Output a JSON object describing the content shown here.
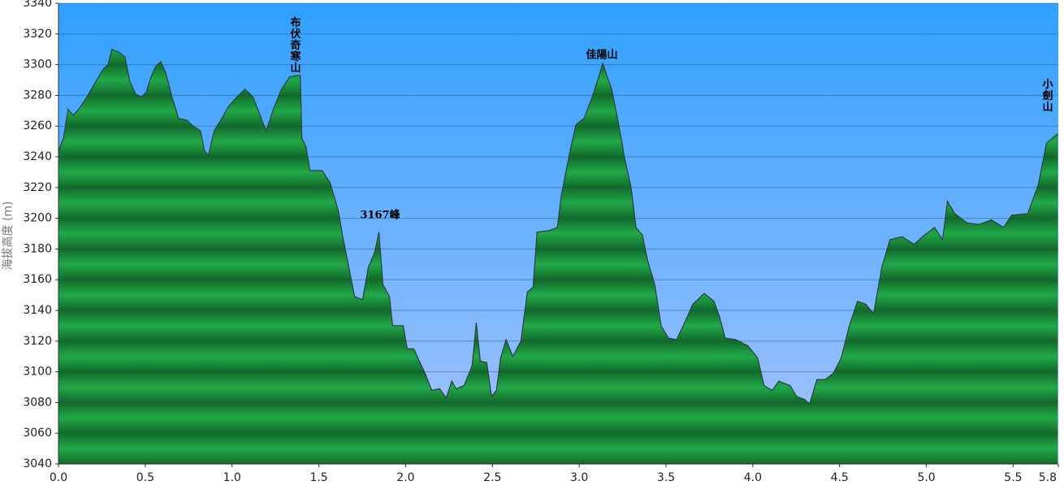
{
  "chart_data": {
    "type": "area",
    "y_label": "海拔高度 (m)",
    "color": "#22a84a",
    "line_color": "#2e3e3a",
    "grid": true,
    "xlim": [
      0,
      5.76
    ],
    "ylim": [
      3040,
      3340
    ],
    "xticks": [
      {
        "value": 0,
        "label": "0.0"
      },
      0.5,
      {
        "value": 1,
        "label": "1.0"
      },
      1.5,
      {
        "value": 2,
        "label": "2.0"
      },
      2.5,
      {
        "value": 3,
        "label": "3.0"
      },
      3.5,
      {
        "value": 4,
        "label": "4.0"
      },
      4.5,
      {
        "value": 5,
        "label": "5.0"
      },
      5.5,
      {
        "value": 5.76,
        "label": "5.8"
      }
    ],
    "yticks": [
      3040,
      3060,
      3080,
      3100,
      3120,
      3140,
      3160,
      3180,
      3200,
      3220,
      3240,
      3260,
      3280,
      3300,
      3320,
      3340
    ],
    "annotations": [
      "布伏奇寒山",
      "3167峰",
      "佳陽山",
      "小劍山"
    ],
    "x": [
      0,
      0.028,
      0.056,
      0.084,
      0.117,
      0.164,
      0.21,
      0.257,
      0.285,
      0.308,
      0.35,
      0.383,
      0.411,
      0.444,
      0.477,
      0.505,
      0.533,
      0.561,
      0.589,
      0.617,
      0.654,
      0.692,
      0.738,
      0.776,
      0.818,
      0.841,
      0.864,
      0.897,
      0.935,
      0.981,
      1.028,
      1.075,
      1.121,
      1.168,
      1.196,
      1.238,
      1.285,
      1.332,
      1.379,
      1.393,
      1.402,
      1.425,
      1.449,
      1.519,
      1.565,
      1.612,
      1.636,
      1.673,
      1.706,
      1.752,
      1.785,
      1.822,
      1.846,
      1.869,
      1.907,
      1.925,
      1.986,
      2.009,
      2.047,
      2.079,
      2.112,
      2.15,
      2.196,
      2.234,
      2.266,
      2.29,
      2.336,
      2.383,
      2.407,
      2.43,
      2.467,
      2.495,
      2.523,
      2.547,
      2.579,
      2.617,
      2.664,
      2.701,
      2.734,
      2.757,
      2.827,
      2.874,
      2.897,
      2.944,
      2.981,
      3.028,
      3.075,
      3.112,
      3.136,
      3.159,
      3.187,
      3.224,
      3.262,
      3.299,
      3.327,
      3.364,
      3.393,
      3.435,
      3.472,
      3.514,
      3.561,
      3.607,
      3.654,
      3.72,
      3.776,
      3.808,
      3.841,
      3.902,
      3.972,
      4.028,
      4.065,
      4.112,
      4.15,
      4.215,
      4.252,
      4.299,
      4.327,
      4.369,
      4.416,
      4.463,
      4.509,
      4.556,
      4.603,
      4.65,
      4.696,
      4.743,
      4.79,
      4.86,
      4.93,
      4.977,
      5.047,
      5.093,
      5.121,
      5.164,
      5.234,
      5.304,
      5.374,
      5.444,
      5.491,
      5.584,
      5.645,
      5.692,
      5.724,
      5.757
    ],
    "values": [
      3244,
      3252,
      3271,
      3267,
      3271,
      3279,
      3288,
      3297,
      3300,
      3310,
      3308,
      3305,
      3289,
      3281,
      3279,
      3282,
      3292,
      3299,
      3302,
      3295,
      3279,
      3265,
      3264,
      3260,
      3257,
      3244,
      3241,
      3257,
      3264,
      3273,
      3279,
      3284,
      3279,
      3265,
      3257,
      3271,
      3284,
      3292,
      3293,
      3293,
      3252,
      3247,
      3231,
      3231,
      3223,
      3205,
      3189,
      3168,
      3149,
      3147,
      3168,
      3178,
      3191,
      3157,
      3149,
      3130,
      3130,
      3115,
      3115,
      3107,
      3099,
      3088,
      3089,
      3083,
      3094,
      3089,
      3091,
      3104,
      3132,
      3107,
      3106,
      3084,
      3088,
      3109,
      3121,
      3110,
      3120,
      3152,
      3155,
      3191,
      3192,
      3194,
      3215,
      3242,
      3261,
      3265,
      3279,
      3292,
      3301,
      3293,
      3284,
      3263,
      3239,
      3220,
      3194,
      3189,
      3173,
      3157,
      3130,
      3122,
      3121,
      3132,
      3144,
      3151,
      3146,
      3136,
      3122,
      3121,
      3117,
      3109,
      3091,
      3088,
      3094,
      3091,
      3084,
      3082,
      3079,
      3095,
      3095,
      3099,
      3109,
      3130,
      3146,
      3144,
      3138,
      3168,
      3186,
      3188,
      3183,
      3188,
      3194,
      3186,
      3211,
      3203,
      3197,
      3196,
      3199,
      3194,
      3202,
      3203,
      3222,
      3249,
      3252,
      3255
    ]
  }
}
